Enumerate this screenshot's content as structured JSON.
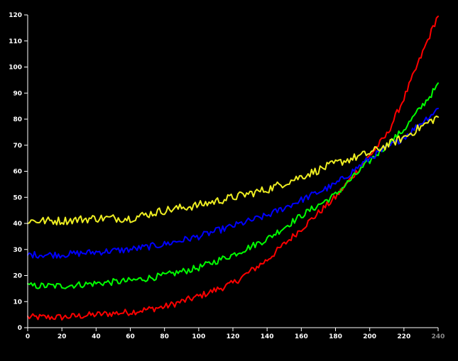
{
  "chart_data": {
    "type": "line",
    "title": "",
    "xlabel": "",
    "ylabel": "",
    "xlim": [
      0,
      240
    ],
    "ylim": [
      0,
      120
    ],
    "x_ticks": [
      0,
      20,
      40,
      60,
      80,
      100,
      120,
      140,
      160,
      180,
      200,
      220,
      240
    ],
    "y_ticks": [
      0,
      10,
      20,
      30,
      40,
      50,
      60,
      70,
      80,
      90,
      100,
      110,
      120
    ],
    "dim_tick_labels": [
      "240"
    ],
    "grid": false,
    "legend": "none",
    "x_step": 1,
    "x_end": 240,
    "series": [
      {
        "color": "#ff0000",
        "control_points": [
          [
            0,
            4
          ],
          [
            20,
            4
          ],
          [
            40,
            5
          ],
          [
            60,
            6
          ],
          [
            80,
            8
          ],
          [
            100,
            12
          ],
          [
            120,
            17
          ],
          [
            140,
            26
          ],
          [
            160,
            38
          ],
          [
            180,
            50
          ],
          [
            200,
            66
          ],
          [
            210,
            74
          ],
          [
            220,
            88
          ],
          [
            230,
            104
          ],
          [
            240,
            120
          ]
        ],
        "noise": 1.3
      },
      {
        "color": "#00ff00",
        "control_points": [
          [
            0,
            16
          ],
          [
            20,
            16
          ],
          [
            40,
            17
          ],
          [
            60,
            18
          ],
          [
            80,
            20
          ],
          [
            100,
            23
          ],
          [
            120,
            28
          ],
          [
            140,
            34
          ],
          [
            160,
            43
          ],
          [
            180,
            51
          ],
          [
            200,
            64
          ],
          [
            220,
            76
          ],
          [
            240,
            93
          ]
        ],
        "noise": 1.3
      },
      {
        "color": "#0000ff",
        "control_points": [
          [
            0,
            28
          ],
          [
            20,
            28
          ],
          [
            40,
            29
          ],
          [
            60,
            30
          ],
          [
            80,
            32
          ],
          [
            100,
            35
          ],
          [
            120,
            39
          ],
          [
            140,
            43
          ],
          [
            160,
            49
          ],
          [
            180,
            55
          ],
          [
            200,
            65
          ],
          [
            220,
            73
          ],
          [
            240,
            84
          ]
        ],
        "noise": 1.3
      },
      {
        "color": "#eeee22",
        "control_points": [
          [
            0,
            41
          ],
          [
            20,
            41
          ],
          [
            40,
            42
          ],
          [
            60,
            42
          ],
          [
            80,
            45
          ],
          [
            100,
            47
          ],
          [
            120,
            50
          ],
          [
            140,
            53
          ],
          [
            160,
            58
          ],
          [
            180,
            63
          ],
          [
            200,
            67
          ],
          [
            220,
            73
          ],
          [
            240,
            81
          ]
        ],
        "noise": 1.6
      }
    ]
  }
}
